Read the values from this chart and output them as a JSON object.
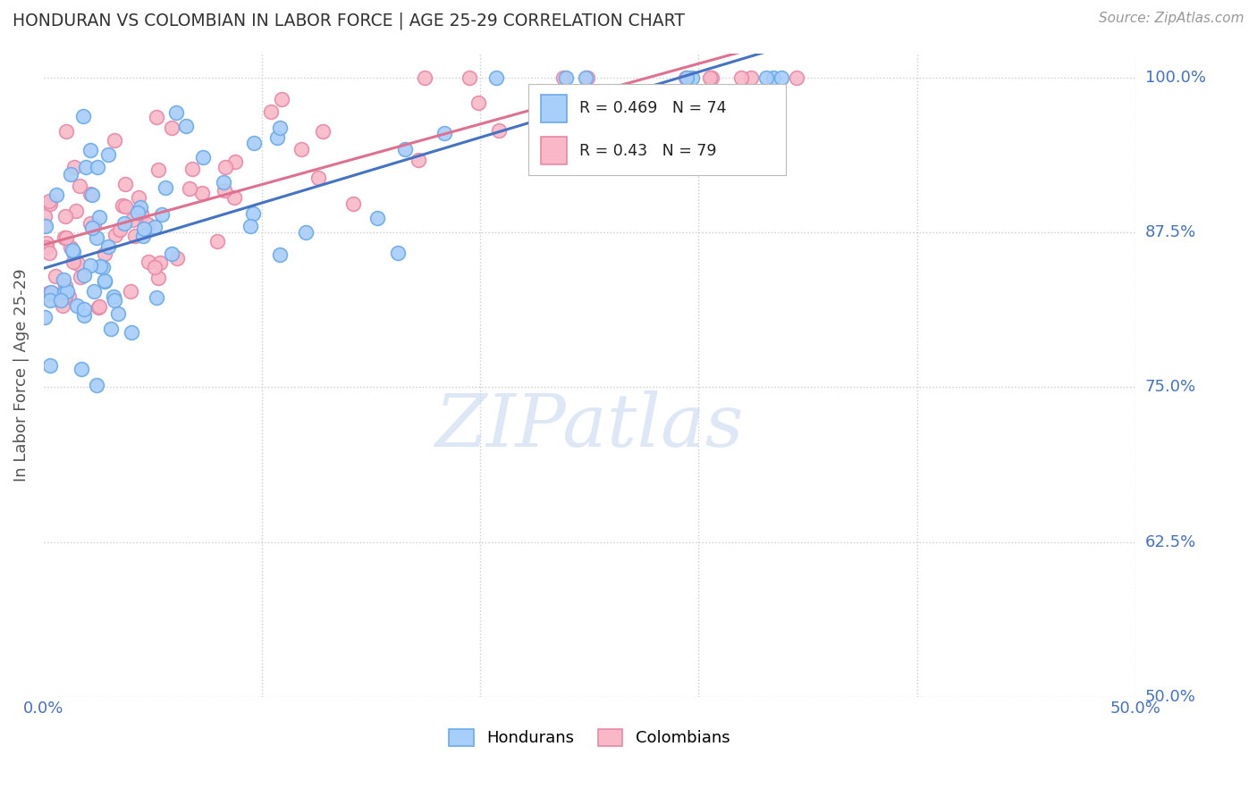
{
  "title": "HONDURAN VS COLOMBIAN IN LABOR FORCE | AGE 25-29 CORRELATION CHART",
  "source": "Source: ZipAtlas.com",
  "ylabel": "In Labor Force | Age 25-29",
  "xlim": [
    0.0,
    0.5
  ],
  "ylim": [
    0.5,
    1.02
  ],
  "xticks": [
    0.0,
    0.1,
    0.2,
    0.3,
    0.4,
    0.5
  ],
  "xticklabels": [
    "0.0%",
    "",
    "",
    "",
    "",
    "50.0%"
  ],
  "yticks": [
    0.5,
    0.625,
    0.75,
    0.875,
    1.0
  ],
  "yticklabels": [
    "50.0%",
    "62.5%",
    "75.0%",
    "87.5%",
    "100.0%"
  ],
  "honduran_fill": "#A8CEFA",
  "honduran_edge": "#6AAAE8",
  "colombian_fill": "#F8B8C8",
  "colombian_edge": "#E888A8",
  "honduran_line_color": "#4472C4",
  "colombian_line_color": "#E07090",
  "R_honduran": 0.469,
  "N_honduran": 74,
  "R_colombian": 0.43,
  "N_colombian": 79,
  "bg_color": "#FFFFFF",
  "grid_color": "#CCCCCC",
  "title_color": "#333333",
  "axis_label_color": "#555555",
  "tick_color": "#4472C4",
  "watermark_color": "#C8D8F0",
  "watermark_alpha": 0.6
}
